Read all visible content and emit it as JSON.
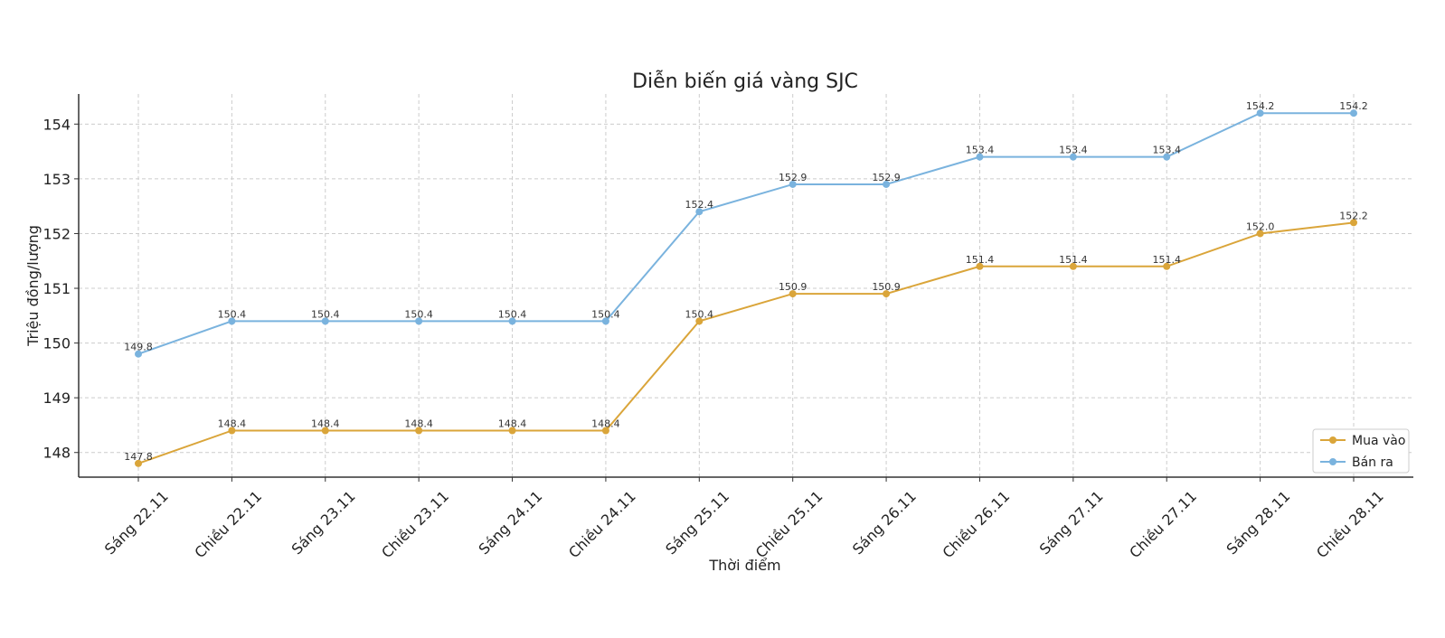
{
  "chart_data": {
    "type": "line",
    "title": "Diễn biến giá vàng SJC",
    "xlabel": "Thời điểm",
    "ylabel": "Triệu đồng/lượng",
    "ylim": [
      147.55,
      154.55
    ],
    "yticks": [
      148,
      149,
      150,
      151,
      152,
      153,
      154
    ],
    "grid": true,
    "legend_position": "bottom-right",
    "categories": [
      "Sáng 22.11",
      "Chiều 22.11",
      "Sáng 23.11",
      "Chiều 23.11",
      "Sáng 24.11",
      "Chiều 24.11",
      "Sáng 25.11",
      "Chiều 25.11",
      "Sáng 26.11",
      "Chiều 26.11",
      "Sáng 27.11",
      "Chiều 27.11",
      "Sáng 28.11",
      "Chiều 28.11"
    ],
    "series": [
      {
        "name": "Mua vào",
        "color": "#DAA53A",
        "values": [
          147.8,
          148.4,
          148.4,
          148.4,
          148.4,
          148.4,
          150.4,
          150.9,
          150.9,
          151.4,
          151.4,
          151.4,
          152.0,
          152.2
        ]
      },
      {
        "name": "Bán ra",
        "color": "#7AB3DE",
        "values": [
          149.8,
          150.4,
          150.4,
          150.4,
          150.4,
          150.4,
          152.4,
          152.9,
          152.9,
          153.4,
          153.4,
          153.4,
          154.2,
          154.2
        ]
      }
    ]
  }
}
